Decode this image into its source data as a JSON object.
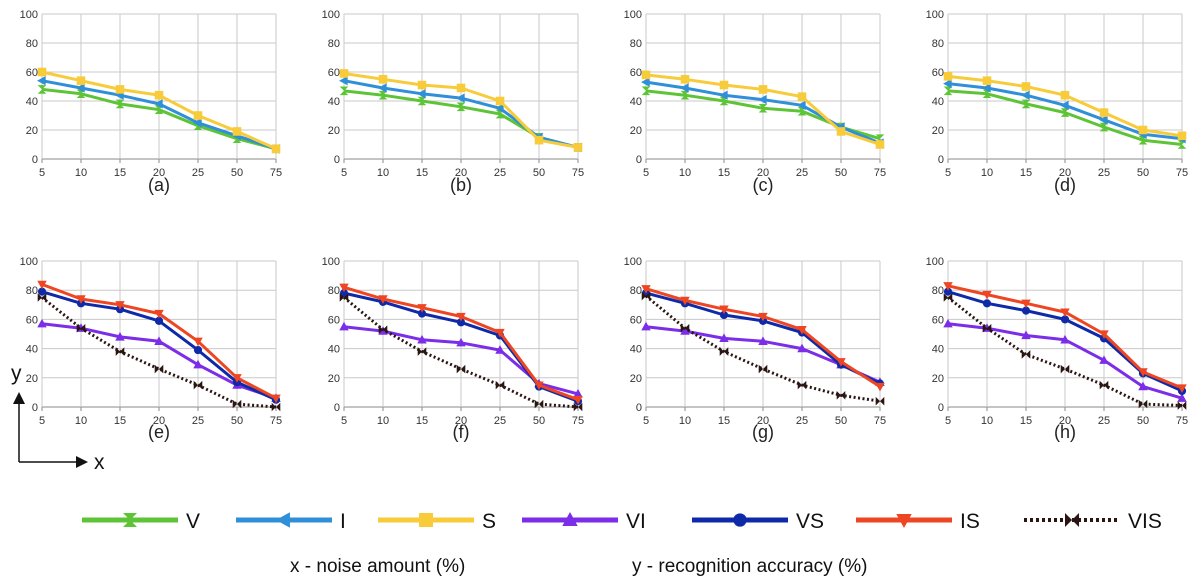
{
  "colors": {
    "V": "#5ec437",
    "I": "#2f8fd8",
    "S": "#f7cb3a",
    "VI": "#7b2de8",
    "VS": "#0f2aa8",
    "IS": "#ee4522",
    "VIS": "#2a1512",
    "grid": "#c8c8c8",
    "axis": "#8a8a8a"
  },
  "markers": {
    "V": "hourglass-marker",
    "I": "triangle-left-marker",
    "S": "square-marker",
    "VI": "triangle-up-marker",
    "VS": "circle-marker",
    "IS": "triangle-down-marker",
    "VIS": "bowtie-marker"
  },
  "legend": [
    {
      "key": "V",
      "label": "V"
    },
    {
      "key": "I",
      "label": "I"
    },
    {
      "key": "S",
      "label": "S"
    },
    {
      "key": "VI",
      "label": "VI"
    },
    {
      "key": "VS",
      "label": "VS"
    },
    {
      "key": "IS",
      "label": "IS"
    },
    {
      "key": "VIS",
      "label": "VIS"
    }
  ],
  "captions": {
    "x": "x - noise amount (%)",
    "y": "y - recognition accuracy (%)"
  },
  "axis_indicator": {
    "x": "x",
    "y": "y"
  },
  "chart_data": [
    {
      "type": "line",
      "label": "(a)",
      "x": [
        "5",
        "10",
        "15",
        "20",
        "25",
        "50",
        "75"
      ],
      "y_ticks": [
        "0",
        "20",
        "40",
        "60",
        "80",
        "100"
      ],
      "ylim": [
        0,
        100
      ],
      "series": [
        {
          "key": "V",
          "values": [
            48,
            45,
            38,
            34,
            23,
            14,
            7
          ]
        },
        {
          "key": "I",
          "values": [
            54,
            49,
            44,
            38,
            25,
            16,
            7
          ]
        },
        {
          "key": "S",
          "values": [
            60,
            54,
            48,
            44,
            30,
            19,
            7
          ]
        }
      ]
    },
    {
      "type": "line",
      "label": "(b)",
      "x": [
        "5",
        "10",
        "15",
        "20",
        "25",
        "50",
        "75"
      ],
      "y_ticks": [
        "0",
        "20",
        "40",
        "60",
        "80",
        "100"
      ],
      "ylim": [
        0,
        100
      ],
      "series": [
        {
          "key": "V",
          "values": [
            47,
            44,
            40,
            36,
            31,
            15,
            8
          ]
        },
        {
          "key": "I",
          "values": [
            54,
            49,
            45,
            42,
            35,
            15,
            8
          ]
        },
        {
          "key": "S",
          "values": [
            59,
            55,
            51,
            49,
            40,
            13,
            8
          ]
        }
      ]
    },
    {
      "type": "line",
      "label": "(c)",
      "x": [
        "5",
        "10",
        "15",
        "20",
        "25",
        "50",
        "75"
      ],
      "y_ticks": [
        "0",
        "20",
        "40",
        "60",
        "80",
        "100"
      ],
      "ylim": [
        0,
        100
      ],
      "series": [
        {
          "key": "V",
          "values": [
            47,
            44,
            40,
            35,
            33,
            22,
            14
          ]
        },
        {
          "key": "I",
          "values": [
            53,
            49,
            44,
            41,
            37,
            22,
            11
          ]
        },
        {
          "key": "S",
          "values": [
            58,
            55,
            51,
            48,
            43,
            19,
            10
          ]
        }
      ]
    },
    {
      "type": "line",
      "label": "(d)",
      "x": [
        "5",
        "10",
        "15",
        "20",
        "25",
        "50",
        "75"
      ],
      "y_ticks": [
        "0",
        "20",
        "40",
        "60",
        "80",
        "100"
      ],
      "ylim": [
        0,
        100
      ],
      "series": [
        {
          "key": "V",
          "values": [
            47,
            45,
            38,
            32,
            22,
            13,
            10
          ]
        },
        {
          "key": "I",
          "values": [
            52,
            49,
            44,
            37,
            27,
            17,
            14
          ]
        },
        {
          "key": "S",
          "values": [
            57,
            54,
            50,
            44,
            32,
            20,
            16
          ]
        }
      ]
    },
    {
      "type": "line",
      "label": "(e)",
      "x": [
        "5",
        "10",
        "15",
        "20",
        "25",
        "50",
        "75"
      ],
      "y_ticks": [
        "0",
        "20",
        "40",
        "60",
        "80",
        "100"
      ],
      "ylim": [
        0,
        100
      ],
      "series": [
        {
          "key": "VI",
          "values": [
            57,
            54,
            48,
            45,
            29,
            15,
            6
          ]
        },
        {
          "key": "VS",
          "values": [
            79,
            71,
            67,
            59,
            39,
            17,
            5
          ]
        },
        {
          "key": "IS",
          "values": [
            84,
            74,
            70,
            64,
            45,
            20,
            6
          ]
        },
        {
          "key": "VIS",
          "values": [
            75,
            54,
            38,
            26,
            15,
            2,
            0
          ]
        }
      ]
    },
    {
      "type": "line",
      "label": "(f)",
      "x": [
        "5",
        "10",
        "15",
        "20",
        "25",
        "50",
        "75"
      ],
      "y_ticks": [
        "0",
        "20",
        "40",
        "60",
        "80",
        "100"
      ],
      "ylim": [
        0,
        100
      ],
      "series": [
        {
          "key": "VI",
          "values": [
            55,
            52,
            46,
            44,
            39,
            16,
            9
          ]
        },
        {
          "key": "VS",
          "values": [
            78,
            72,
            64,
            58,
            49,
            14,
            4
          ]
        },
        {
          "key": "IS",
          "values": [
            82,
            74,
            68,
            62,
            51,
            15,
            5
          ]
        },
        {
          "key": "VIS",
          "values": [
            75,
            53,
            38,
            26,
            15,
            2,
            0
          ]
        }
      ]
    },
    {
      "type": "line",
      "label": "(g)",
      "x": [
        "5",
        "10",
        "15",
        "20",
        "25",
        "50",
        "75"
      ],
      "y_ticks": [
        "0",
        "20",
        "40",
        "60",
        "80",
        "100"
      ],
      "ylim": [
        0,
        100
      ],
      "series": [
        {
          "key": "VI",
          "values": [
            55,
            52,
            47,
            45,
            40,
            29,
            17
          ]
        },
        {
          "key": "VS",
          "values": [
            78,
            71,
            63,
            59,
            51,
            29,
            16
          ]
        },
        {
          "key": "IS",
          "values": [
            81,
            73,
            67,
            62,
            53,
            31,
            14
          ]
        },
        {
          "key": "VIS",
          "values": [
            76,
            54,
            38,
            26,
            15,
            8,
            4
          ]
        }
      ]
    },
    {
      "type": "line",
      "label": "(h)",
      "x": [
        "5",
        "10",
        "15",
        "20",
        "25",
        "50",
        "75"
      ],
      "y_ticks": [
        "0",
        "20",
        "40",
        "60",
        "80",
        "100"
      ],
      "ylim": [
        0,
        100
      ],
      "series": [
        {
          "key": "VI",
          "values": [
            57,
            54,
            49,
            46,
            32,
            14,
            6
          ]
        },
        {
          "key": "VS",
          "values": [
            79,
            71,
            66,
            60,
            47,
            23,
            11
          ]
        },
        {
          "key": "IS",
          "values": [
            83,
            77,
            71,
            65,
            50,
            24,
            13
          ]
        },
        {
          "key": "VIS",
          "values": [
            75,
            54,
            36,
            26,
            15,
            2,
            1
          ]
        }
      ]
    }
  ]
}
